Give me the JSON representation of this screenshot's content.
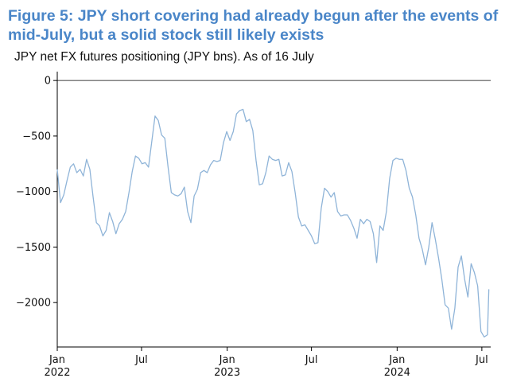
{
  "figure": {
    "title": "Figure 5: JPY short covering had already begun after the events of mid-July, but a solid stock still likely exists",
    "subtitle": "JPY net FX futures positioning (JPY bns). As of 16 July"
  },
  "colors": {
    "title": "#4a86c8",
    "line": "#8fb4d8",
    "axis": "#000000"
  },
  "chart_data": {
    "type": "line",
    "title": "",
    "xlabel": "",
    "ylabel": "",
    "ylim": [
      -2400,
      80
    ],
    "xlim": [
      "2022-01-01",
      "2024-07-20"
    ],
    "grid": false,
    "yticks": [
      0,
      -500,
      -1000,
      -1500,
      -2000
    ],
    "ytick_labels": [
      "0",
      "−500",
      "−1000",
      "−1500",
      "−2000"
    ],
    "xticks": [
      {
        "date": "2022-01-01",
        "label": "Jan",
        "year": "2022"
      },
      {
        "date": "2022-07-01",
        "label": "Jul",
        "year": ""
      },
      {
        "date": "2023-01-01",
        "label": "Jan",
        "year": "2023"
      },
      {
        "date": "2023-07-01",
        "label": "Jul",
        "year": ""
      },
      {
        "date": "2024-01-01",
        "label": "Jan",
        "year": "2024"
      },
      {
        "date": "2024-07-01",
        "label": "Jul",
        "year": ""
      }
    ],
    "series": [
      {
        "points": [
          [
            "2022-01-01",
            -800
          ],
          [
            "2022-01-08",
            -1100
          ],
          [
            "2022-01-15",
            -1030
          ],
          [
            "2022-01-22",
            -900
          ],
          [
            "2022-01-29",
            -780
          ],
          [
            "2022-02-05",
            -750
          ],
          [
            "2022-02-12",
            -830
          ],
          [
            "2022-02-19",
            -800
          ],
          [
            "2022-02-26",
            -860
          ],
          [
            "2022-03-05",
            -710
          ],
          [
            "2022-03-12",
            -800
          ],
          [
            "2022-03-19",
            -1050
          ],
          [
            "2022-03-26",
            -1280
          ],
          [
            "2022-04-02",
            -1310
          ],
          [
            "2022-04-09",
            -1400
          ],
          [
            "2022-04-16",
            -1350
          ],
          [
            "2022-04-23",
            -1190
          ],
          [
            "2022-04-30",
            -1270
          ],
          [
            "2022-05-07",
            -1380
          ],
          [
            "2022-05-14",
            -1290
          ],
          [
            "2022-05-21",
            -1250
          ],
          [
            "2022-05-28",
            -1180
          ],
          [
            "2022-06-04",
            -1010
          ],
          [
            "2022-06-11",
            -820
          ],
          [
            "2022-06-18",
            -680
          ],
          [
            "2022-06-25",
            -700
          ],
          [
            "2022-07-02",
            -750
          ],
          [
            "2022-07-09",
            -740
          ],
          [
            "2022-07-16",
            -780
          ],
          [
            "2022-07-23",
            -550
          ],
          [
            "2022-07-30",
            -320
          ],
          [
            "2022-08-06",
            -360
          ],
          [
            "2022-08-13",
            -490
          ],
          [
            "2022-08-20",
            -520
          ],
          [
            "2022-08-27",
            -780
          ],
          [
            "2022-09-03",
            -1010
          ],
          [
            "2022-09-10",
            -1030
          ],
          [
            "2022-09-17",
            -1040
          ],
          [
            "2022-09-24",
            -1020
          ],
          [
            "2022-10-01",
            -960
          ],
          [
            "2022-10-08",
            -1180
          ],
          [
            "2022-10-15",
            -1280
          ],
          [
            "2022-10-22",
            -1040
          ],
          [
            "2022-10-29",
            -980
          ],
          [
            "2022-11-05",
            -830
          ],
          [
            "2022-11-12",
            -810
          ],
          [
            "2022-11-19",
            -830
          ],
          [
            "2022-11-26",
            -760
          ],
          [
            "2022-12-03",
            -720
          ],
          [
            "2022-12-10",
            -730
          ],
          [
            "2022-12-17",
            -720
          ],
          [
            "2022-12-24",
            -560
          ],
          [
            "2022-12-31",
            -460
          ],
          [
            "2023-01-07",
            -540
          ],
          [
            "2023-01-14",
            -460
          ],
          [
            "2023-01-21",
            -300
          ],
          [
            "2023-01-28",
            -270
          ],
          [
            "2023-02-04",
            -260
          ],
          [
            "2023-02-11",
            -370
          ],
          [
            "2023-02-18",
            -350
          ],
          [
            "2023-02-25",
            -450
          ],
          [
            "2023-03-04",
            -720
          ],
          [
            "2023-03-11",
            -940
          ],
          [
            "2023-03-18",
            -930
          ],
          [
            "2023-03-25",
            -830
          ],
          [
            "2023-04-01",
            -680
          ],
          [
            "2023-04-08",
            -710
          ],
          [
            "2023-04-15",
            -720
          ],
          [
            "2023-04-22",
            -710
          ],
          [
            "2023-04-29",
            -860
          ],
          [
            "2023-05-06",
            -850
          ],
          [
            "2023-05-13",
            -740
          ],
          [
            "2023-05-20",
            -820
          ],
          [
            "2023-05-27",
            -1010
          ],
          [
            "2023-06-03",
            -1230
          ],
          [
            "2023-06-10",
            -1310
          ],
          [
            "2023-06-17",
            -1300
          ],
          [
            "2023-06-24",
            -1350
          ],
          [
            "2023-07-01",
            -1400
          ],
          [
            "2023-07-08",
            -1470
          ],
          [
            "2023-07-15",
            -1460
          ],
          [
            "2023-07-22",
            -1150
          ],
          [
            "2023-07-29",
            -970
          ],
          [
            "2023-08-05",
            -1000
          ],
          [
            "2023-08-12",
            -1050
          ],
          [
            "2023-08-19",
            -1010
          ],
          [
            "2023-08-26",
            -1180
          ],
          [
            "2023-09-02",
            -1220
          ],
          [
            "2023-09-09",
            -1210
          ],
          [
            "2023-09-16",
            -1210
          ],
          [
            "2023-09-23",
            -1260
          ],
          [
            "2023-09-30",
            -1330
          ],
          [
            "2023-10-07",
            -1420
          ],
          [
            "2023-10-14",
            -1250
          ],
          [
            "2023-10-21",
            -1290
          ],
          [
            "2023-10-28",
            -1250
          ],
          [
            "2023-11-04",
            -1270
          ],
          [
            "2023-11-11",
            -1380
          ],
          [
            "2023-11-18",
            -1640
          ],
          [
            "2023-11-25",
            -1310
          ],
          [
            "2023-12-02",
            -1350
          ],
          [
            "2023-12-09",
            -1180
          ],
          [
            "2023-12-16",
            -880
          ],
          [
            "2023-12-23",
            -720
          ],
          [
            "2023-12-30",
            -700
          ],
          [
            "2024-01-06",
            -710
          ],
          [
            "2024-01-13",
            -710
          ],
          [
            "2024-01-20",
            -810
          ],
          [
            "2024-01-27",
            -970
          ],
          [
            "2024-02-03",
            -1050
          ],
          [
            "2024-02-10",
            -1210
          ],
          [
            "2024-02-17",
            -1420
          ],
          [
            "2024-02-24",
            -1520
          ],
          [
            "2024-03-02",
            -1660
          ],
          [
            "2024-03-09",
            -1500
          ],
          [
            "2024-03-16",
            -1280
          ],
          [
            "2024-03-23",
            -1430
          ],
          [
            "2024-03-30",
            -1600
          ],
          [
            "2024-04-06",
            -1790
          ],
          [
            "2024-04-13",
            -2020
          ],
          [
            "2024-04-20",
            -2050
          ],
          [
            "2024-04-27",
            -2240
          ],
          [
            "2024-05-04",
            -2050
          ],
          [
            "2024-05-11",
            -1680
          ],
          [
            "2024-05-18",
            -1580
          ],
          [
            "2024-05-25",
            -1790
          ],
          [
            "2024-06-01",
            -1950
          ],
          [
            "2024-06-08",
            -1650
          ],
          [
            "2024-06-15",
            -1730
          ],
          [
            "2024-06-22",
            -1850
          ],
          [
            "2024-06-29",
            -2260
          ],
          [
            "2024-07-06",
            -2310
          ],
          [
            "2024-07-13",
            -2290
          ],
          [
            "2024-07-16",
            -1880
          ]
        ]
      }
    ]
  }
}
